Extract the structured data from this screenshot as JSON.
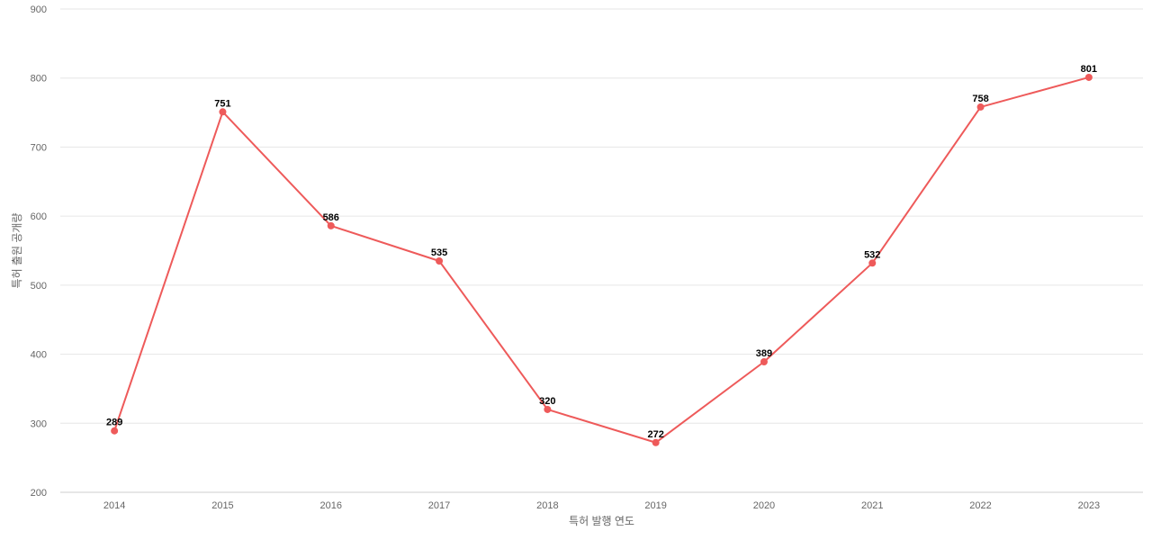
{
  "chart_data": {
    "type": "line",
    "title": "",
    "xlabel": "특허 발행 연도",
    "ylabel": "특허 출원 공개량",
    "categories": [
      "2014",
      "2015",
      "2016",
      "2017",
      "2018",
      "2019",
      "2020",
      "2021",
      "2022",
      "2023"
    ],
    "series": [
      {
        "values": [
          289,
          751,
          586,
          535,
          320,
          272,
          389,
          532,
          758,
          801
        ],
        "color": "#ee5a5a"
      }
    ],
    "ylim": [
      200,
      900
    ],
    "yticks": [
      200,
      300,
      400,
      500,
      600,
      700,
      800,
      900
    ],
    "grid": true,
    "legend": "none",
    "data_labels": true
  }
}
